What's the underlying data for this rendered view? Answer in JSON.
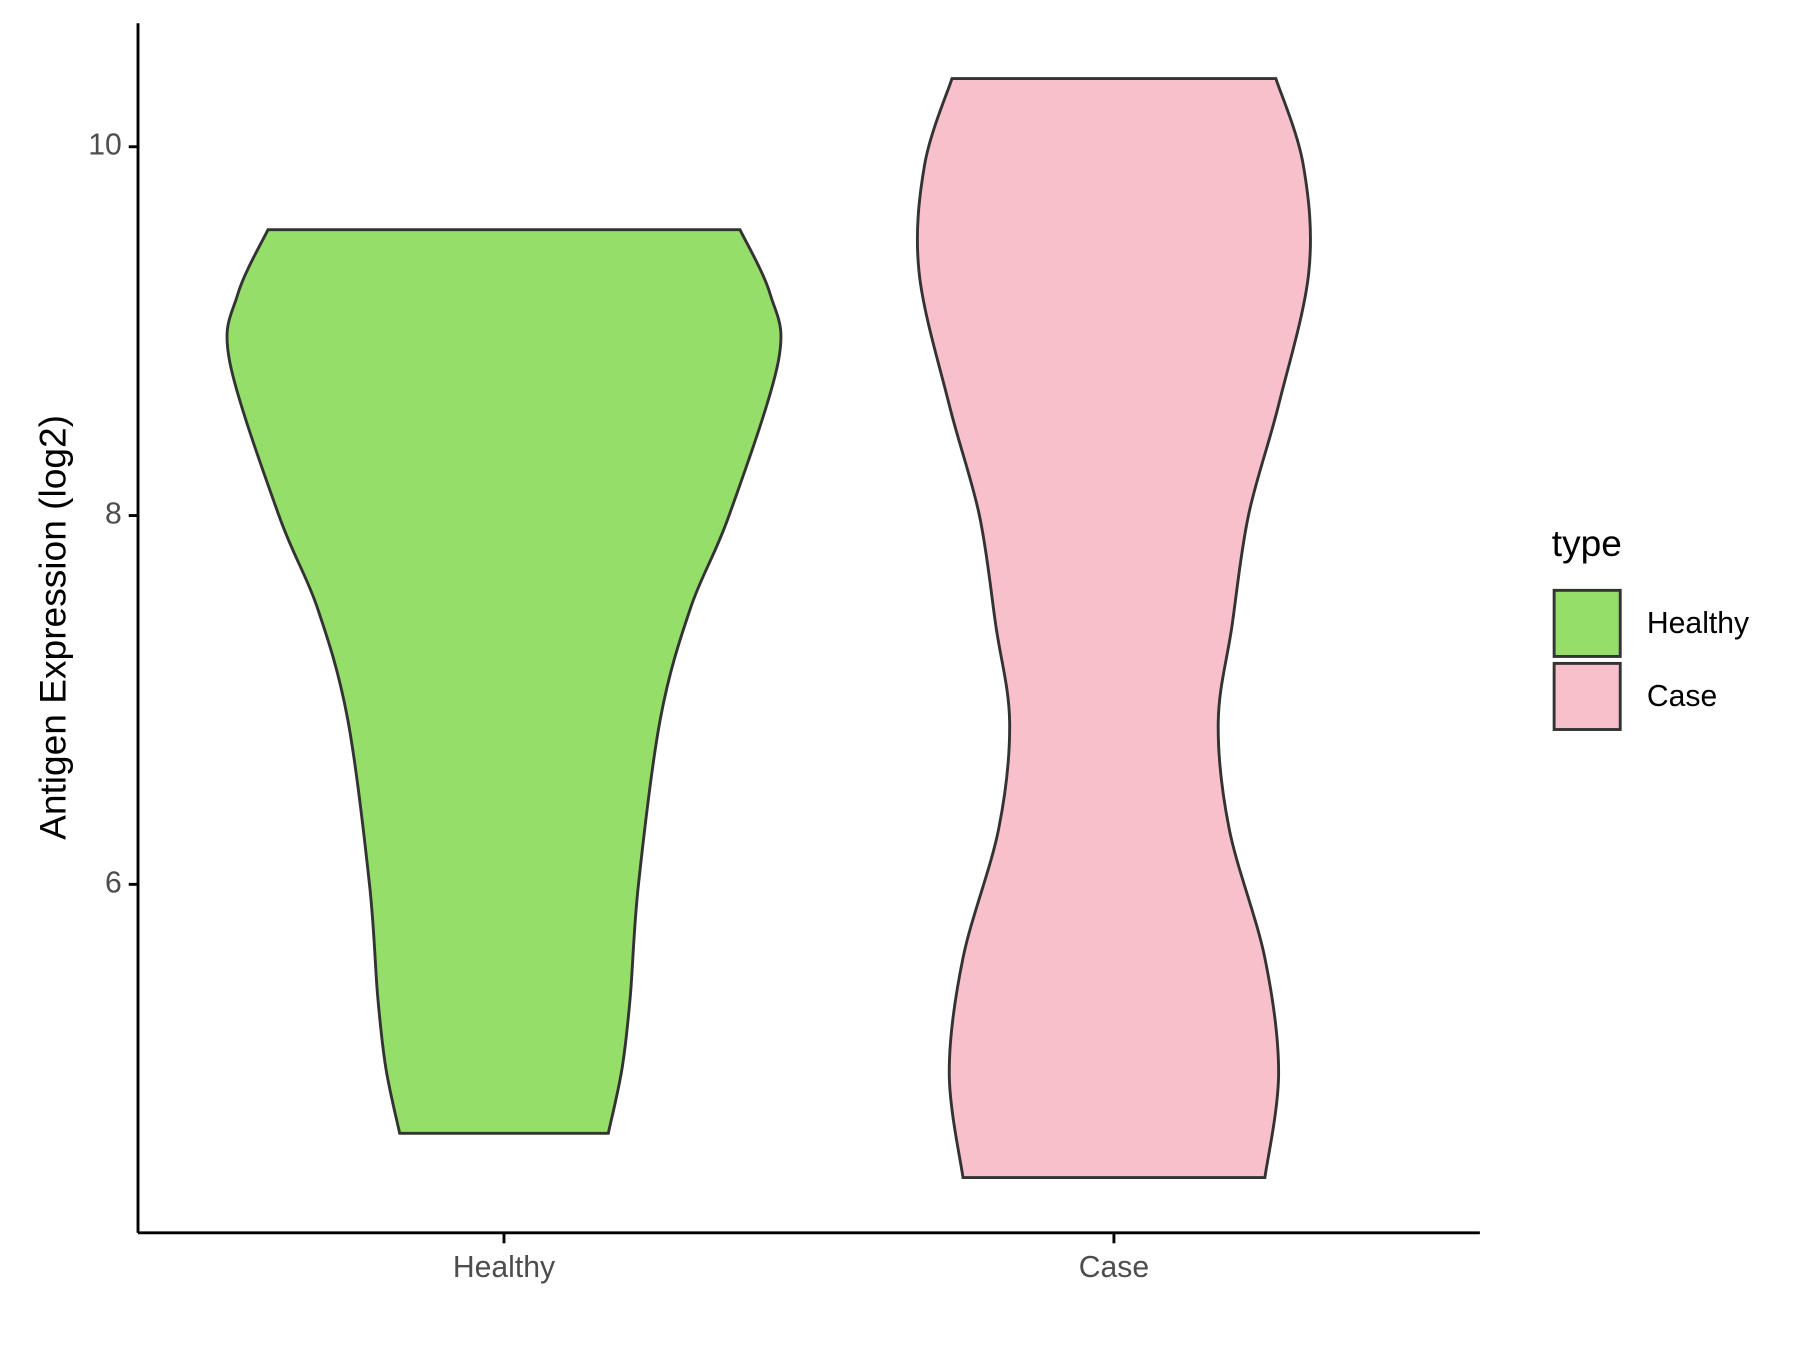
{
  "chart_data": {
    "type": "violin",
    "y_label": "Antigen Expression (log2)",
    "categories": [
      "Healthy",
      "Case"
    ],
    "legend_title": "type",
    "legend_position": "right",
    "ylim": [
      4.11,
      10.67
    ],
    "yticks": [
      6,
      8,
      10
    ],
    "grid": false,
    "series": [
      {
        "name": "Healthy",
        "color": "#95DE6A",
        "y": [
          9.55,
          9.2,
          8.84,
          8.0,
          7.5,
          6.9,
          6.0,
          5.39,
          5.0,
          4.65
        ],
        "density": [
          0.86,
          0.97,
          1.0,
          0.82,
          0.68,
          0.57,
          0.49,
          0.46,
          0.43,
          0.38
        ]
      },
      {
        "name": "Case",
        "color": "#F7C0CB",
        "y": [
          10.37,
          9.9,
          9.32,
          8.6,
          8.0,
          7.4,
          6.88,
          6.3,
          5.6,
          4.98,
          4.41
        ],
        "density": [
          0.59,
          0.69,
          0.71,
          0.6,
          0.49,
          0.43,
          0.38,
          0.42,
          0.55,
          0.6,
          0.55
        ]
      }
    ]
  }
}
